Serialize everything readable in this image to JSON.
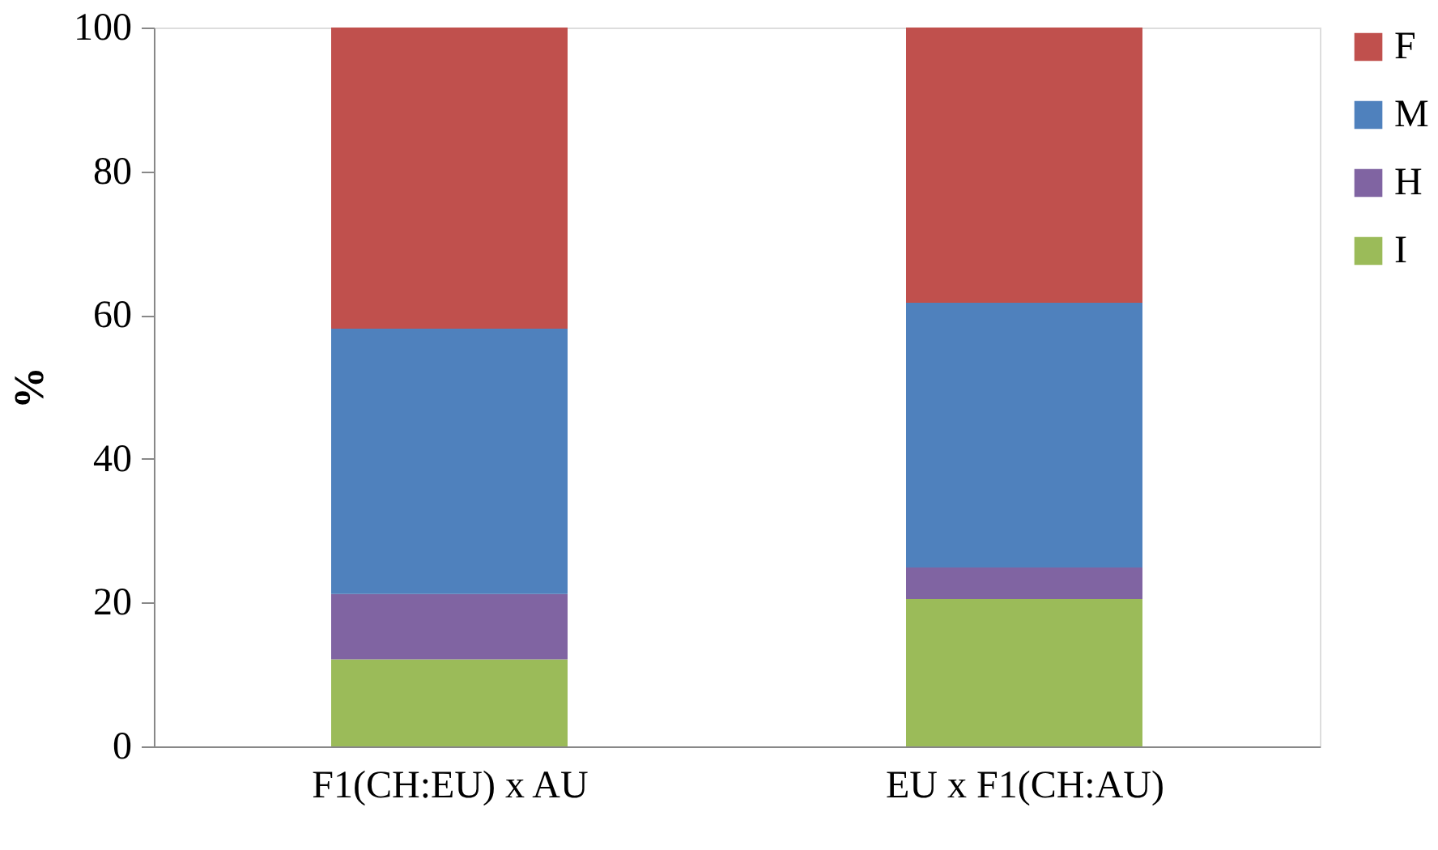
{
  "chart_data": {
    "type": "bar",
    "stacked": true,
    "ylabel": "%",
    "categories": [
      "F1(CH:EU) x AU",
      "EU x F1(CH:AU)"
    ],
    "series": [
      {
        "name": "I",
        "color": "#9bbb59",
        "values": [
          12.1,
          20.5
        ]
      },
      {
        "name": "H",
        "color": "#8064a2",
        "values": [
          9.1,
          4.4
        ]
      },
      {
        "name": "M",
        "color": "#4f81bd",
        "values": [
          36.9,
          36.8
        ]
      },
      {
        "name": "F",
        "color": "#c0504d",
        "values": [
          41.9,
          38.3
        ]
      }
    ],
    "ylim": [
      0,
      100
    ],
    "yticks": [
      0,
      20,
      40,
      60,
      80,
      100
    ],
    "grid": false,
    "legend": "right"
  }
}
